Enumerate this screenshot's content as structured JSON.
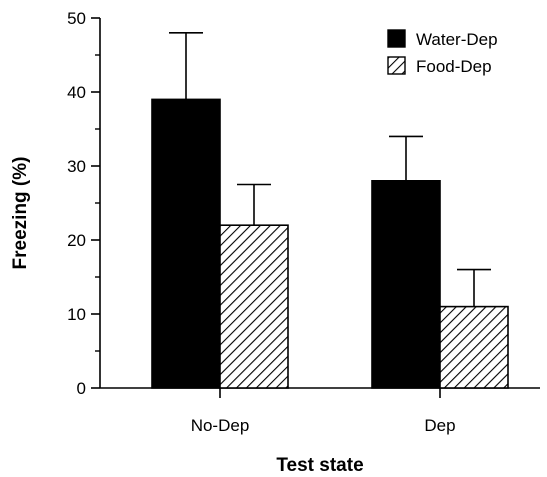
{
  "chart_data": {
    "type": "bar",
    "categories": [
      "No-Dep",
      "Dep"
    ],
    "series": [
      {
        "name": "Water-Dep",
        "values": [
          39,
          28
        ],
        "errors": [
          9,
          6
        ],
        "fill": "solid-black"
      },
      {
        "name": "Food-Dep",
        "values": [
          22,
          11
        ],
        "errors": [
          5.5,
          5
        ],
        "fill": "diagonal-hatch"
      }
    ],
    "title": "",
    "xlabel": "Test state",
    "ylabel": "Freezing (%)",
    "ylim": [
      0,
      50
    ],
    "yticks": [
      "0",
      "10",
      "20",
      "30",
      "40",
      "50"
    ],
    "grid": false,
    "legend": "top-right",
    "colors": {
      "ink": "#000000",
      "background": "#ffffff"
    }
  }
}
